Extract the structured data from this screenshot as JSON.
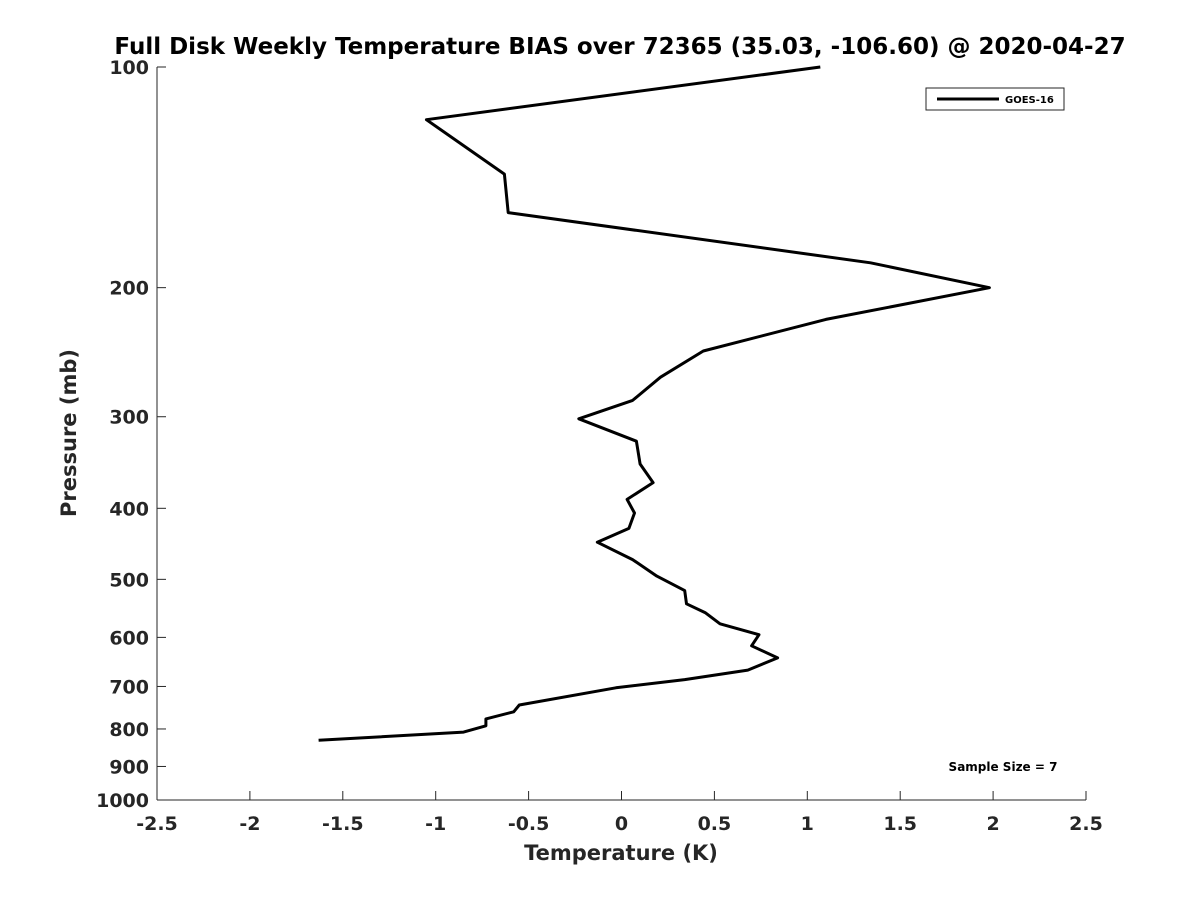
{
  "chart_data": {
    "type": "line",
    "title": "Full Disk Weekly Temperature BIAS over 72365 (35.03, -106.60) @ 2020-04-27",
    "xlabel": "Temperature (K)",
    "ylabel": "Pressure (mb)",
    "xlim": [
      -2.5,
      2.5
    ],
    "ylim": [
      100,
      1000
    ],
    "y_scale": "log",
    "y_reversed": true,
    "grid": false,
    "legend_position": "top-right",
    "x_ticks": [
      -2.5,
      -2,
      -1.5,
      -1,
      -0.5,
      0,
      0.5,
      1,
      1.5,
      2,
      2.5
    ],
    "x_tick_labels": [
      "-2.5",
      "-2",
      "-1.5",
      "-1",
      "-0.5",
      "0",
      "0.5",
      "1",
      "1.5",
      "2",
      "2.5"
    ],
    "y_ticks": [
      100,
      200,
      300,
      400,
      500,
      600,
      700,
      800,
      900,
      1000
    ],
    "y_tick_labels": [
      "100",
      "200",
      "300",
      "400",
      "500",
      "600",
      "700",
      "800",
      "900",
      "1000"
    ],
    "series": [
      {
        "name": "GOES-16",
        "color": "#000000",
        "points": [
          {
            "x": 1.07,
            "y": 100
          },
          {
            "x": -1.05,
            "y": 118
          },
          {
            "x": -0.63,
            "y": 140
          },
          {
            "x": -0.61,
            "y": 158
          },
          {
            "x": 1.34,
            "y": 185
          },
          {
            "x": 1.98,
            "y": 200
          },
          {
            "x": 1.1,
            "y": 221
          },
          {
            "x": 0.44,
            "y": 244
          },
          {
            "x": 0.21,
            "y": 265
          },
          {
            "x": 0.06,
            "y": 285
          },
          {
            "x": -0.23,
            "y": 302
          },
          {
            "x": 0.08,
            "y": 324
          },
          {
            "x": 0.1,
            "y": 348
          },
          {
            "x": 0.17,
            "y": 369
          },
          {
            "x": 0.03,
            "y": 389
          },
          {
            "x": 0.07,
            "y": 406
          },
          {
            "x": 0.04,
            "y": 426
          },
          {
            "x": -0.13,
            "y": 445
          },
          {
            "x": 0.06,
            "y": 470
          },
          {
            "x": 0.19,
            "y": 495
          },
          {
            "x": 0.34,
            "y": 518
          },
          {
            "x": 0.35,
            "y": 540
          },
          {
            "x": 0.45,
            "y": 555
          },
          {
            "x": 0.53,
            "y": 575
          },
          {
            "x": 0.74,
            "y": 595
          },
          {
            "x": 0.7,
            "y": 616
          },
          {
            "x": 0.84,
            "y": 640
          },
          {
            "x": 0.68,
            "y": 665
          },
          {
            "x": 0.34,
            "y": 685
          },
          {
            "x": -0.03,
            "y": 703
          },
          {
            "x": -0.55,
            "y": 742
          },
          {
            "x": -0.58,
            "y": 758
          },
          {
            "x": -0.73,
            "y": 775
          },
          {
            "x": -0.73,
            "y": 792
          },
          {
            "x": -0.85,
            "y": 808
          },
          {
            "x": -1.63,
            "y": 829
          }
        ]
      }
    ],
    "annotations": {
      "sample_size": "Sample Size = 7"
    }
  }
}
